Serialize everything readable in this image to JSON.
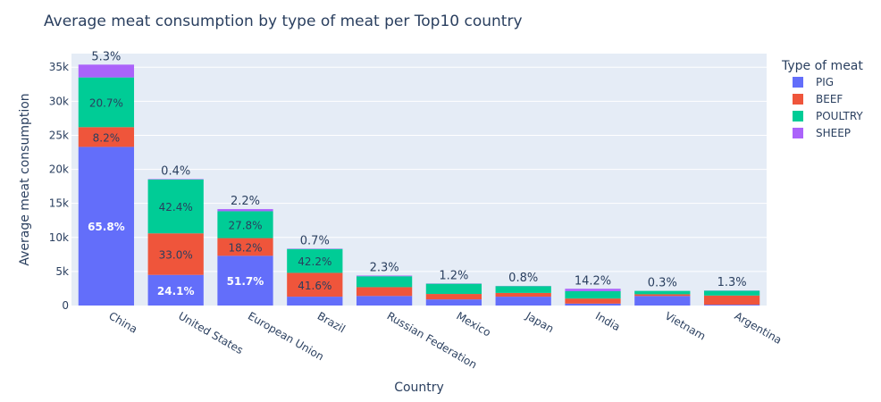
{
  "chart_data": {
    "type": "bar",
    "stacked": true,
    "title": "Average meat consumption by type of meat per Top10 country",
    "xlabel": "Country",
    "ylabel": "Average meat consumption",
    "ylim": [
      0,
      37000
    ],
    "yticks": [
      0,
      5000,
      10000,
      15000,
      20000,
      25000,
      30000,
      35000
    ],
    "ytick_labels": [
      "0",
      "5k",
      "10k",
      "15k",
      "20k",
      "25k",
      "30k",
      "35k"
    ],
    "grid": true,
    "legend": {
      "title": "Type of meat",
      "placement": "right"
    },
    "categories": [
      "China",
      "United States",
      "European Union",
      "Brazil",
      "Russian Federation",
      "Mexico",
      "Japan",
      "India",
      "Vietnam",
      "Argentina"
    ],
    "series": [
      {
        "name": "PIG",
        "color": "#636efa",
        "values": [
          23300,
          4500,
          7300,
          1300,
          1400,
          900,
          1300,
          280,
          1400,
          120
        ],
        "labels": [
          "65.8%",
          "24.1%",
          "51.7%",
          "",
          "",
          "",
          "",
          "",
          "",
          ""
        ]
      },
      {
        "name": "BEEF",
        "color": "#ef553b",
        "values": [
          2900,
          6100,
          2600,
          3500,
          1300,
          800,
          550,
          750,
          250,
          1350
        ],
        "labels": [
          "8.2%",
          "33.0%",
          "18.2%",
          "41.6%",
          "",
          "",
          "",
          "",
          "",
          ""
        ]
      },
      {
        "name": "POULTRY",
        "color": "#00cc96",
        "values": [
          7300,
          7900,
          3950,
          3500,
          1600,
          1500,
          1000,
          1080,
          500,
          700
        ],
        "labels": [
          "20.7%",
          "42.4%",
          "27.8%",
          "42.2%",
          "",
          "",
          "",
          "",
          "",
          ""
        ]
      },
      {
        "name": "SHEEP",
        "color": "#ab63fa",
        "values": [
          1880,
          70,
          310,
          60,
          100,
          40,
          25,
          350,
          6,
          28
        ],
        "labels": [
          "",
          "",
          "",
          "",
          "",
          "",
          "",
          "",
          "",
          ""
        ]
      }
    ],
    "top_labels": [
      "5.3%",
      "0.4%",
      "2.2%",
      "0.7%",
      "2.3%",
      "1.2%",
      "0.8%",
      "14.2%",
      "0.3%",
      "1.3%"
    ]
  }
}
